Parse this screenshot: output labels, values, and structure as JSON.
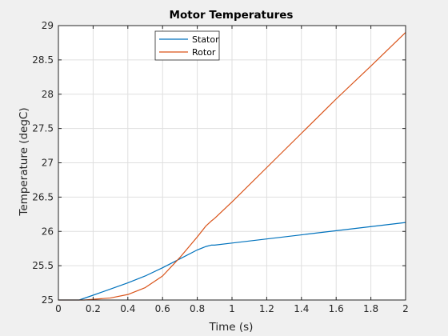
{
  "chart_data": {
    "type": "line",
    "title": "Motor Temperatures",
    "xlabel": "Time (s)",
    "ylabel": "Temperature (degC)",
    "xlim": [
      0,
      2
    ],
    "ylim": [
      25,
      29
    ],
    "xticks": [
      0,
      0.2,
      0.4,
      0.6,
      0.8,
      1,
      1.2,
      1.4,
      1.6,
      1.8,
      2
    ],
    "xtick_labels": [
      "0",
      "0.2",
      "0.4",
      "0.6",
      "0.8",
      "1",
      "1.2",
      "1.4",
      "1.6",
      "1.8",
      "2"
    ],
    "yticks": [
      25,
      25.5,
      26,
      26.5,
      27,
      27.5,
      28,
      28.5,
      29
    ],
    "ytick_labels": [
      "25",
      "25.5",
      "26",
      "26.5",
      "27",
      "27.5",
      "28",
      "28.5",
      "29"
    ],
    "grid": true,
    "legend_position": "top-center",
    "series": [
      {
        "name": "Stator",
        "color": "#0072BD",
        "x": [
          0,
          0.12,
          0.2,
          0.3,
          0.4,
          0.5,
          0.6,
          0.7,
          0.8,
          0.85,
          0.88,
          0.9,
          1.0,
          1.2,
          1.4,
          1.6,
          1.8,
          2.0
        ],
        "y": [
          25,
          25,
          25.07,
          25.16,
          25.25,
          25.35,
          25.47,
          25.6,
          25.73,
          25.78,
          25.8,
          25.8,
          25.83,
          25.89,
          25.95,
          26.01,
          26.07,
          26.13
        ]
      },
      {
        "name": "Rotor",
        "color": "#D95319",
        "x": [
          0,
          0.15,
          0.3,
          0.4,
          0.5,
          0.6,
          0.7,
          0.8,
          0.85,
          0.88,
          0.9,
          1.0,
          1.2,
          1.4,
          1.6,
          1.8,
          2.0
        ],
        "y": [
          25,
          25,
          25.03,
          25.08,
          25.18,
          25.35,
          25.62,
          25.92,
          26.08,
          26.15,
          26.19,
          26.43,
          26.93,
          27.43,
          27.93,
          28.41,
          28.9
        ]
      }
    ]
  }
}
